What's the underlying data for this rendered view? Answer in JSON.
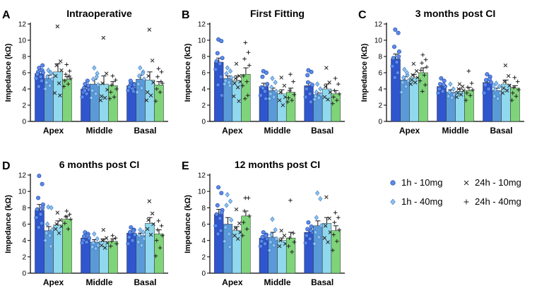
{
  "figure": {
    "legend": [
      {
        "key": "g1",
        "label": "1h - 10mg",
        "marker": "circle"
      },
      {
        "key": "g2",
        "label": "1h - 40mg",
        "marker": "diamond"
      },
      {
        "key": "g3",
        "label": "24h - 10mg",
        "marker": "x"
      },
      {
        "key": "g4",
        "label": "24h - 40mg",
        "marker": "plus"
      }
    ],
    "colors": {
      "g1": "#2f56cf",
      "g2": "#5a9ad8",
      "g3": "#90d8ee",
      "g4": "#7fd47a"
    }
  },
  "chart_data": [
    {
      "type": "bar",
      "panel_label": "A",
      "title": "Intraoperative",
      "ylabel": "Impedance (kΩ)",
      "ylim": [
        0,
        12
      ],
      "yticks": [
        0,
        2,
        4,
        6,
        8,
        10,
        12
      ],
      "categories": [
        "Apex",
        "Middle",
        "Basal"
      ],
      "series": [
        {
          "name": "1h - 10mg",
          "values": [
            5.9,
            4.0,
            4.4
          ],
          "errors": [
            0.3,
            0.3,
            0.2
          ],
          "points": [
            [
              6.6,
              6.3,
              6.1,
              6.0,
              5.8,
              5.5,
              5.3,
              5.0,
              4.3,
              6.9
            ],
            [
              4.6,
              4.3,
              4.1,
              3.9,
              3.6,
              3.4,
              3.0,
              5.0,
              3.8,
              4.4
            ],
            [
              4.8,
              4.6,
              4.4,
              4.3,
              4.2,
              4.0,
              3.8,
              3.7,
              5.0,
              4.5
            ]
          ]
        },
        {
          "name": "1h - 40mg",
          "values": [
            5.3,
            4.6,
            5.2
          ],
          "errors": [
            0.4,
            0.6,
            0.5
          ],
          "points": [
            [
              6.3,
              5.9,
              5.5,
              5.2,
              4.8,
              4.4,
              4.0,
              6.0
            ],
            [
              6.6,
              5.9,
              5.2,
              4.5,
              3.8,
              3.4,
              2.9,
              5.5
            ],
            [
              6.6,
              6.1,
              5.6,
              5.2,
              4.6,
              4.1,
              3.6,
              5.9
            ]
          ]
        },
        {
          "name": "24h - 10mg",
          "values": [
            6.1,
            4.6,
            5.1
          ],
          "errors": [
            1.0,
            1.0,
            1.0
          ],
          "points": [
            [
              11.7,
              7.4,
              6.9,
              6.3,
              5.6,
              4.7,
              3.5,
              3.2
            ],
            [
              10.3,
              5.9,
              4.7,
              3.9,
              3.1,
              2.9,
              2.6
            ],
            [
              11.3,
              7.5,
              5.6,
              4.8,
              3.6,
              3.2,
              2.6
            ]
          ]
        },
        {
          "name": "24h - 40mg",
          "values": [
            5.2,
            4.4,
            4.5
          ],
          "errors": [
            0.3,
            0.5,
            0.4
          ],
          "points": [
            [
              7.0,
              6.2,
              5.8,
              5.3,
              5.0,
              4.6,
              4.3,
              5.6
            ],
            [
              5.6,
              5.1,
              4.5,
              4.0,
              3.6,
              3.0,
              2.8
            ],
            [
              6.5,
              6.1,
              5.5,
              4.7,
              4.0,
              3.6,
              2.5,
              4.9
            ]
          ]
        }
      ]
    },
    {
      "type": "bar",
      "panel_label": "B",
      "title": "First  Fitting",
      "ylabel": "Impedance (kΩ)",
      "ylim": [
        0,
        12
      ],
      "yticks": [
        0,
        2,
        4,
        6,
        8,
        10,
        12
      ],
      "categories": [
        "Apex",
        "Middle",
        "Basal"
      ],
      "series": [
        {
          "name": "1h - 10mg",
          "values": [
            7.3,
            4.3,
            4.4
          ],
          "errors": [
            0.5,
            0.4,
            0.4
          ],
          "points": [
            [
              10.1,
              9.9,
              8.4,
              7.8,
              7.4,
              7.1,
              6.4,
              5.5,
              4.5,
              3.2
            ],
            [
              6.2,
              6.0,
              5.5,
              4.6,
              4.2,
              3.7,
              3.2,
              2.8,
              4.1
            ],
            [
              6.3,
              6.1,
              5.7,
              4.5,
              4.0,
              3.4,
              3.0,
              2.4,
              4.8
            ]
          ]
        },
        {
          "name": "1h - 40mg",
          "values": [
            5.3,
            3.8,
            3.3
          ],
          "errors": [
            0.3,
            0.3,
            0.2
          ],
          "points": [
            [
              6.6,
              6.2,
              5.9,
              5.4,
              5.0,
              4.8,
              4.6,
              4.4
            ],
            [
              5.3,
              4.8,
              4.2,
              3.7,
              3.4,
              3.0,
              2.8
            ],
            [
              4.6,
              4.0,
              3.6,
              3.3,
              3.1,
              2.9,
              2.7
            ]
          ]
        },
        {
          "name": "24h - 10mg",
          "values": [
            5.0,
            3.4,
            4.0
          ],
          "errors": [
            0.6,
            0.5,
            0.6
          ],
          "points": [
            [
              7.1,
              5.6,
              5.3,
              4.9,
              4.7,
              4.2,
              3.1,
              2.5
            ],
            [
              5.4,
              4.4,
              3.6,
              3.0,
              2.6,
              2.0
            ],
            [
              6.6,
              4.8,
              4.3,
              3.6,
              3.0,
              2.7
            ]
          ]
        },
        {
          "name": "24h - 40mg",
          "values": [
            5.8,
            3.6,
            3.4
          ],
          "errors": [
            0.8,
            0.5,
            0.4
          ],
          "points": [
            [
              9.7,
              8.5,
              7.7,
              6.9,
              5.6,
              4.9,
              4.4,
              3.2,
              2.8
            ],
            [
              5.8,
              4.9,
              3.8,
              3.3,
              2.9,
              2.6,
              2.4
            ],
            [
              5.3,
              4.6,
              3.8,
              3.4,
              3.0,
              2.6,
              2.2
            ]
          ]
        }
      ]
    },
    {
      "type": "bar",
      "panel_label": "C",
      "title": "3 months post CI",
      "ylabel": "Impedance (kΩ)",
      "ylim": [
        0,
        12
      ],
      "yticks": [
        0,
        2,
        4,
        6,
        8,
        10,
        12
      ],
      "categories": [
        "Apex",
        "Middle",
        "Basal"
      ],
      "series": [
        {
          "name": "1h - 10mg",
          "values": [
            7.7,
            4.3,
            4.8
          ],
          "errors": [
            0.6,
            0.3,
            0.3
          ],
          "points": [
            [
              11.3,
              10.9,
              9.2,
              8.6,
              7.8,
              7.3,
              6.8,
              6.0,
              5.4,
              8.0
            ],
            [
              5.3,
              5.0,
              4.6,
              4.3,
              4.0,
              3.7,
              3.5,
              4.5
            ],
            [
              5.8,
              5.5,
              5.1,
              4.8,
              4.5,
              4.0,
              3.5,
              5.2
            ]
          ]
        },
        {
          "name": "1h - 40mg",
          "values": [
            5.1,
            3.6,
            3.8
          ],
          "errors": [
            0.4,
            0.3,
            0.3
          ],
          "points": [
            [
              6.4,
              5.7,
              5.4,
              5.0,
              4.8,
              4.3,
              3.6,
              6.0
            ],
            [
              4.6,
              4.0,
              3.6,
              3.3,
              3.1,
              2.9
            ],
            [
              4.7,
              4.3,
              3.9,
              3.5,
              3.1,
              2.8,
              4.4
            ]
          ]
        },
        {
          "name": "24h - 10mg",
          "values": [
            5.4,
            3.7,
            4.6
          ],
          "errors": [
            0.4,
            0.3,
            0.5
          ],
          "points": [
            [
              7.1,
              6.2,
              5.7,
              5.4,
              5.1,
              4.8,
              4.6
            ],
            [
              4.6,
              4.3,
              4.0,
              3.8,
              3.5,
              3.3,
              3.0
            ],
            [
              6.9,
              5.6,
              4.9,
              4.4,
              4.1,
              3.8,
              3.5
            ]
          ]
        },
        {
          "name": "24h - 40mg",
          "values": [
            6.0,
            3.8,
            4.1
          ],
          "errors": [
            0.6,
            0.4,
            0.3
          ],
          "points": [
            [
              8.2,
              7.6,
              7.2,
              6.7,
              6.3,
              5.7,
              5.0,
              4.5,
              3.7
            ],
            [
              6.2,
              4.7,
              4.2,
              3.9,
              3.5,
              3.2,
              2.6
            ],
            [
              5.4,
              4.9,
              4.2,
              3.9,
              3.5,
              3.1,
              2.6
            ]
          ]
        }
      ]
    },
    {
      "type": "bar",
      "panel_label": "D",
      "title": "6 months post CI",
      "ylabel": "Impedance (kΩ)",
      "ylim": [
        0,
        12
      ],
      "yticks": [
        0,
        2,
        4,
        6,
        8,
        10,
        12
      ],
      "categories": [
        "Apex",
        "Middle",
        "Basal"
      ],
      "series": [
        {
          "name": "1h - 10mg",
          "values": [
            7.7,
            4.3,
            4.9
          ],
          "errors": [
            0.7,
            0.3,
            0.3
          ],
          "points": [
            [
              11.9,
              10.9,
              9.2,
              8.4,
              7.8,
              7.2,
              6.8,
              6.1,
              5.6,
              8.0
            ],
            [
              5.0,
              4.8,
              4.5,
              4.3,
              4.0,
              3.8,
              3.7,
              4.6
            ],
            [
              5.6,
              5.3,
              5.0,
              4.7,
              4.4,
              4.0,
              3.6,
              5.2
            ]
          ]
        },
        {
          "name": "1h - 40mg",
          "values": [
            5.2,
            3.8,
            4.6
          ],
          "errors": [
            0.5,
            0.3,
            0.3
          ],
          "points": [
            [
              8.1,
              8.0,
              6.0,
              5.3,
              4.9,
              4.6,
              4.0,
              3.3
            ],
            [
              4.8,
              4.2,
              3.7,
              3.4,
              3.2,
              3.0
            ],
            [
              5.3,
              5.0,
              4.6,
              4.2,
              3.8,
              3.4
            ]
          ]
        },
        {
          "name": "24h - 10mg",
          "values": [
            5.9,
            3.9,
            6.1
          ],
          "errors": [
            0.5,
            0.3,
            0.7
          ],
          "points": [
            [
              7.4,
              6.5,
              6.0,
              5.7,
              5.4,
              4.9
            ],
            [
              5.3,
              4.3,
              4.0,
              3.7,
              3.4,
              3.1
            ],
            [
              8.8,
              7.3,
              6.5,
              6.0,
              5.4,
              4.7
            ]
          ]
        },
        {
          "name": "24h - 40mg",
          "values": [
            6.6,
            3.9,
            4.8
          ],
          "errors": [
            0.4,
            0.3,
            0.5
          ],
          "points": [
            [
              7.6,
              7.2,
              6.9,
              6.6,
              6.1,
              5.4
            ],
            [
              4.6,
              4.3,
              3.9,
              3.6,
              3.3
            ],
            [
              6.4,
              5.8,
              5.3,
              4.6,
              4.0,
              3.1,
              2.1
            ]
          ]
        }
      ]
    },
    {
      "type": "bar",
      "panel_label": "E",
      "title": "12 months post CI",
      "ylabel": "Impedance (kΩ)",
      "ylim": [
        0,
        12
      ],
      "yticks": [
        0,
        2,
        4,
        6,
        8,
        10,
        12
      ],
      "categories": [
        "Apex",
        "Middle",
        "Basal"
      ],
      "series": [
        {
          "name": "1h - 10mg",
          "values": [
            7.2,
            4.3,
            5.0
          ],
          "errors": [
            0.6,
            0.3,
            0.4
          ],
          "points": [
            [
              10.5,
              9.8,
              8.3,
              7.7,
              7.2,
              6.7,
              5.8,
              5.2,
              4.8,
              7.4
            ],
            [
              5.0,
              4.7,
              4.4,
              4.2,
              3.9,
              3.6,
              3.3,
              4.6
            ],
            [
              6.2,
              5.7,
              5.4,
              5.0,
              4.6,
              4.2,
              3.7,
              5.2
            ]
          ]
        },
        {
          "name": "1h - 40mg",
          "values": [
            6.0,
            4.4,
            5.8
          ],
          "errors": [
            0.8,
            0.6,
            0.6
          ],
          "points": [
            [
              9.6,
              8.8,
              8.3,
              6.5,
              5.6,
              4.8,
              3.9,
              3.2
            ],
            [
              6.6,
              5.3,
              4.7,
              4.2,
              3.8,
              3.4,
              2.8
            ],
            [
              9.8,
              9.1,
              6.8,
              5.8,
              5.0,
              4.4,
              3.6
            ]
          ]
        },
        {
          "name": "24h - 10mg",
          "values": [
            5.2,
            4.0,
            6.1
          ],
          "errors": [
            0.5,
            0.3,
            0.7
          ],
          "points": [
            [
              7.8,
              6.1,
              5.5,
              5.0,
              4.6,
              4.2
            ],
            [
              5.2,
              4.6,
              4.0,
              3.6,
              3.3
            ],
            [
              9.3,
              6.7,
              5.8,
              5.0,
              4.3,
              3.8
            ]
          ]
        },
        {
          "name": "24h - 40mg",
          "values": [
            7.0,
            4.3,
            5.2
          ],
          "errors": [
            0.6,
            0.7,
            0.6
          ],
          "points": [
            [
              9.2,
              9.2,
              7.6,
              7.0,
              6.2,
              5.4,
              4.6
            ],
            [
              8.9,
              4.9,
              4.3,
              3.8,
              3.3,
              2.6
            ],
            [
              7.4,
              6.8,
              6.2,
              5.3,
              4.7,
              3.9,
              2.8
            ]
          ]
        }
      ]
    }
  ]
}
